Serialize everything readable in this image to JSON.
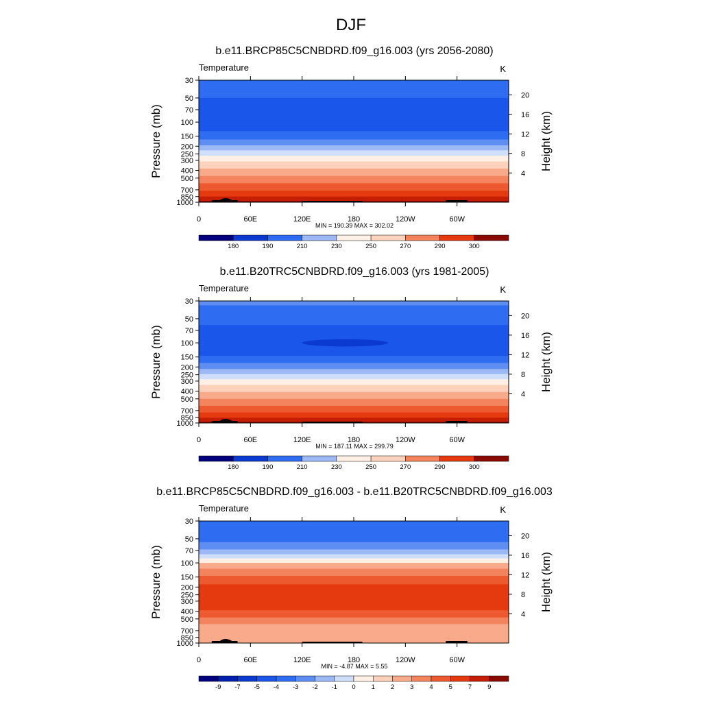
{
  "title": "DJF",
  "palette": [
    "#00007f",
    "#0020b0",
    "#0a3ad0",
    "#1a56ea",
    "#2e6cf2",
    "#5e8ef2",
    "#9cb8f5",
    "#cfdffa",
    "#fff0e6",
    "#fcd2bc",
    "#f8aa8a",
    "#f3845e",
    "#ee5a30",
    "#e53a10",
    "#c41f05",
    "#8a0a00"
  ],
  "y_ticks": [
    "30",
    "50",
    "70",
    "100",
    "150",
    "200",
    "250",
    "300",
    "400",
    "500",
    "700",
    "850",
    "1000"
  ],
  "y_tick_values": [
    30,
    50,
    70,
    100,
    150,
    200,
    250,
    300,
    400,
    500,
    700,
    850,
    1000
  ],
  "right_ticks": [
    "20",
    "16",
    "12",
    "8",
    "4"
  ],
  "right_tick_values": [
    20,
    16,
    12,
    8,
    4
  ],
  "x_ticks": [
    "0",
    "60E",
    "120E",
    "180",
    "120W",
    "60W"
  ],
  "x_tick_values": [
    0,
    60,
    120,
    180,
    240,
    300
  ],
  "chart_data": [
    {
      "type": "heatmap",
      "title": "b.e11.BRCP85C5CNBDRD.f09_g16.003 (yrs 2056-2080)",
      "variable": "Temperature",
      "units": "K",
      "ylabel": "Pressure (mb)",
      "ylabel_right": "Height (km)",
      "xlim": [
        0,
        360
      ],
      "ylim": [
        1000,
        30
      ],
      "minmax": "MIN = 190.39  MAX = 302.02",
      "min": 190.39,
      "max": 302.02,
      "bands": [
        {
          "p_top": 30,
          "p_bot": 50,
          "c": 4
        },
        {
          "p_top": 50,
          "p_bot": 130,
          "c": 3
        },
        {
          "p_top": 130,
          "p_bot": 165,
          "c": 4
        },
        {
          "p_top": 165,
          "p_bot": 195,
          "c": 5
        },
        {
          "p_top": 195,
          "p_bot": 225,
          "c": 6
        },
        {
          "p_top": 225,
          "p_bot": 262,
          "c": 7
        },
        {
          "p_top": 262,
          "p_bot": 310,
          "c": 8
        },
        {
          "p_top": 310,
          "p_bot": 380,
          "c": 9
        },
        {
          "p_top": 380,
          "p_bot": 470,
          "c": 10
        },
        {
          "p_top": 470,
          "p_bot": 580,
          "c": 11
        },
        {
          "p_top": 580,
          "p_bot": 720,
          "c": 12
        },
        {
          "p_top": 720,
          "p_bot": 850,
          "c": 13
        },
        {
          "p_top": 850,
          "p_bot": 960,
          "c": 14
        },
        {
          "p_top": 960,
          "p_bot": 1000,
          "c": 15
        }
      ],
      "colorbar_labels": [
        "180",
        "190",
        "210",
        "230",
        "250",
        "270",
        "290",
        "300"
      ]
    },
    {
      "type": "heatmap",
      "title": "b.e11.B20TRC5CNBDRD.f09_g16.003 (yrs 1981-2005)",
      "variable": "Temperature",
      "units": "K",
      "ylabel": "Pressure (mb)",
      "ylabel_right": "Height (km)",
      "xlim": [
        0,
        360
      ],
      "ylim": [
        1000,
        30
      ],
      "minmax": "MIN = 187.11  MAX = 299.79",
      "min": 187.11,
      "max": 299.79,
      "bands": [
        {
          "p_top": 30,
          "p_bot": 34,
          "c": 5
        },
        {
          "p_top": 34,
          "p_bot": 60,
          "c": 4
        },
        {
          "p_top": 60,
          "p_bot": 145,
          "c": 3
        },
        {
          "p_top": 145,
          "p_bot": 178,
          "c": 4
        },
        {
          "p_top": 178,
          "p_bot": 212,
          "c": 5
        },
        {
          "p_top": 212,
          "p_bot": 245,
          "c": 6
        },
        {
          "p_top": 245,
          "p_bot": 285,
          "c": 7
        },
        {
          "p_top": 285,
          "p_bot": 335,
          "c": 8
        },
        {
          "p_top": 335,
          "p_bot": 410,
          "c": 9
        },
        {
          "p_top": 410,
          "p_bot": 500,
          "c": 10
        },
        {
          "p_top": 500,
          "p_bot": 610,
          "c": 11
        },
        {
          "p_top": 610,
          "p_bot": 740,
          "c": 12
        },
        {
          "p_top": 740,
          "p_bot": 860,
          "c": 13
        },
        {
          "p_top": 860,
          "p_bot": 965,
          "c": 14
        },
        {
          "p_top": 965,
          "p_bot": 1000,
          "c": 15
        }
      ],
      "cold_core": {
        "lon_center": 170,
        "lon_halfwidth": 50,
        "p_center": 100,
        "p_halfheight": 8,
        "c": 2
      },
      "colorbar_labels": [
        "180",
        "190",
        "210",
        "230",
        "250",
        "270",
        "290",
        "300"
      ]
    },
    {
      "type": "heatmap",
      "title": "b.e11.BRCP85C5CNBDRD.f09_g16.003 - b.e11.B20TRC5CNBDRD.f09_g16.003",
      "variable": "Temperature",
      "units": "K",
      "ylabel": "Pressure (mb)",
      "ylabel_right": "Height (km)",
      "xlim": [
        0,
        360
      ],
      "ylim": [
        1000,
        30
      ],
      "minmax": "MIN = -4.87  MAX =   5.55",
      "min": -4.87,
      "max": 5.55,
      "bands": [
        {
          "p_top": 30,
          "p_bot": 55,
          "c": 4
        },
        {
          "p_top": 55,
          "p_bot": 68,
          "c": 5
        },
        {
          "p_top": 68,
          "p_bot": 78,
          "c": 6
        },
        {
          "p_top": 78,
          "p_bot": 88,
          "c": 7
        },
        {
          "p_top": 88,
          "p_bot": 100,
          "c": 8
        },
        {
          "p_top": 100,
          "p_bot": 118,
          "c": 10
        },
        {
          "p_top": 118,
          "p_bot": 145,
          "c": 11
        },
        {
          "p_top": 145,
          "p_bot": 185,
          "c": 12
        },
        {
          "p_top": 185,
          "p_bot": 390,
          "c": 13
        },
        {
          "p_top": 390,
          "p_bot": 480,
          "c": 12
        },
        {
          "p_top": 480,
          "p_bot": 580,
          "c": 11
        },
        {
          "p_top": 580,
          "p_bot": 1000,
          "c": 10
        }
      ],
      "colorbar_labels": [
        "-9",
        "-7",
        "-5",
        "-4",
        "-3",
        "-2",
        "-1",
        "0",
        "1",
        "2",
        "3",
        "4",
        "5",
        "7",
        "9"
      ]
    }
  ]
}
